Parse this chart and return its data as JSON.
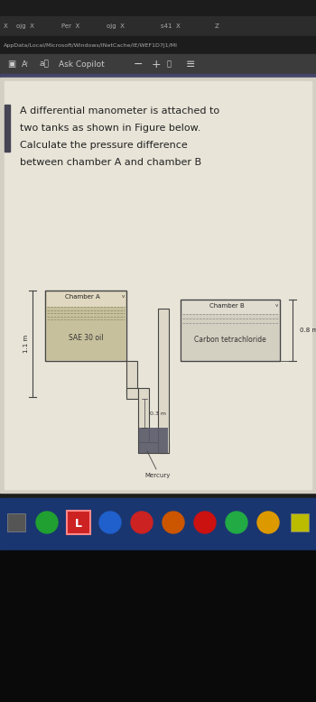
{
  "bg_top": "#1c1c1c",
  "tab_bar_color": "#2e2e2e",
  "url_bar_color": "#1c1c1c",
  "toolbar_color": "#3a3a3a",
  "page_bg": "#d9d4c8",
  "content_bg": "#e8e3d5",
  "separator_color": "#444466",
  "tab_text": "X   ojg X   Per X   ojg X   s41 X   Z",
  "url_text": "AppData/Local/Microsoft/Windows/INetCache/IE/WEF1D7J1/MI",
  "problem_text_lines": [
    "A differential manometer is attached to",
    "two tanks as shown in Figure below.",
    "Calculate the pressure difference",
    "between chamber A and chamber B"
  ],
  "chamber_a_label": "Chamber A",
  "chamber_b_label": "Chamber B",
  "fluid_a_label": "SAE 30 oil",
  "fluid_b_label": "Carbon tetrachloride",
  "mercury_label": "Mercury",
  "dim_1_1m": "1.1 m",
  "dim_0_3m": "0.3 m",
  "dim_0_8m": "0.8 m",
  "line_color": "#444444",
  "fluid_fill_color": "#c8bfa0",
  "fluid_b_fill_color": "#c8c4b8",
  "mercury_fill_color": "#5a5a6a",
  "pipe_fill_color": "#e8e4d8",
  "taskbar_color": "#1a3670",
  "accent_bar_color": "#3a3a55"
}
